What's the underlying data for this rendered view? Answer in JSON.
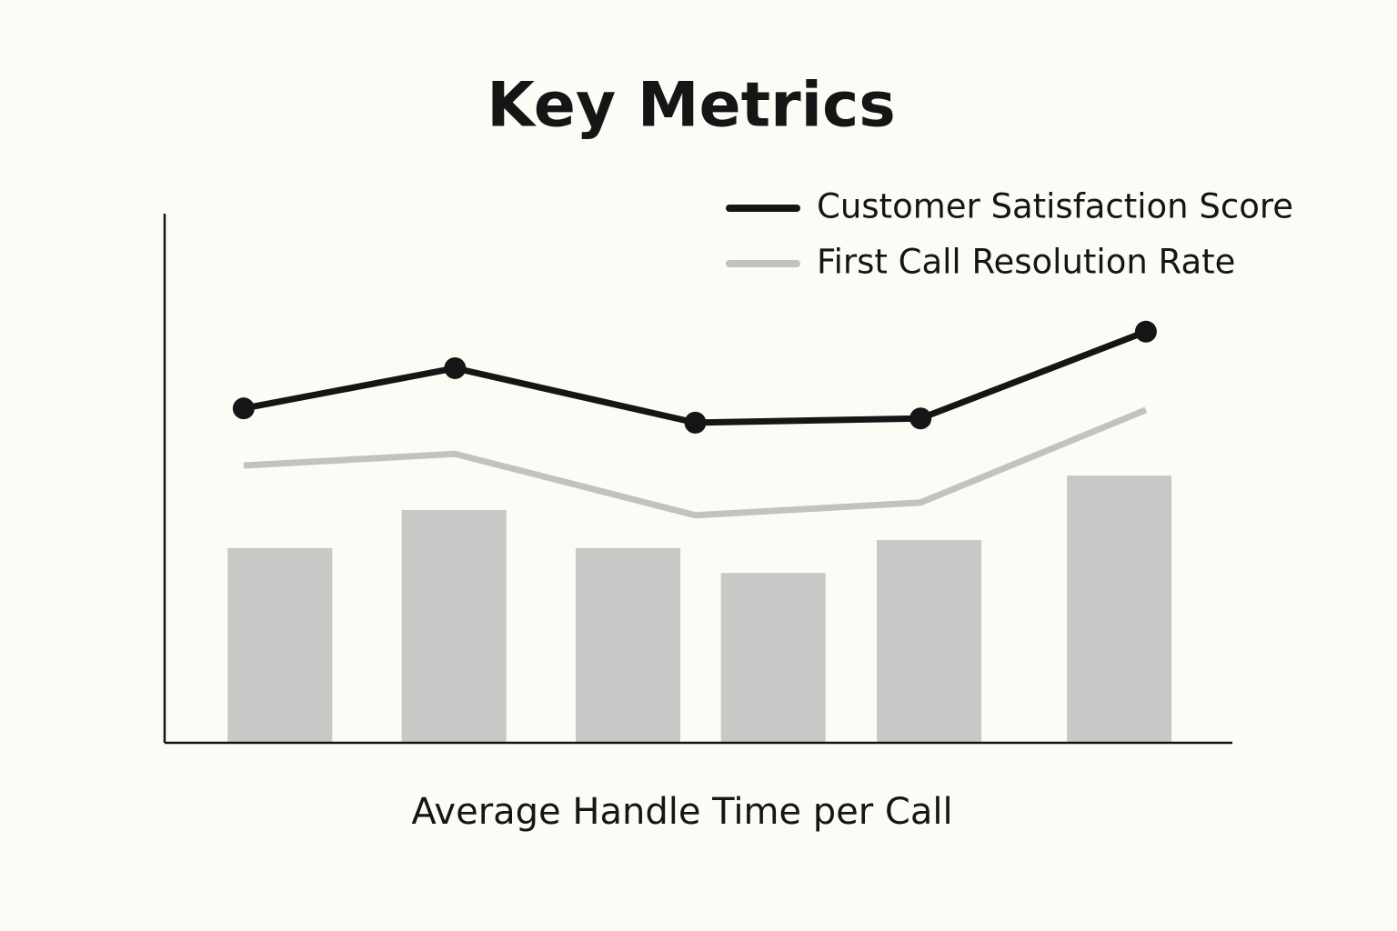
{
  "chart_data": {
    "type": "bar_line",
    "title": "Key Metrics",
    "x_label": "Average Handle Time per Call",
    "xlim": [
      0,
      100
    ],
    "ylim": [
      0,
      100
    ],
    "bars": {
      "color": "#c8c8c6",
      "width": 9.8,
      "x": [
        10.8,
        27.1,
        43.4,
        57.0,
        71.6,
        89.4
      ],
      "values": [
        36.8,
        44.0,
        36.8,
        32.1,
        38.3,
        50.5
      ]
    },
    "series": [
      {
        "name": "Customer Satisfaction Score",
        "color": "#151515",
        "markers": true,
        "x": [
          7.4,
          27.2,
          49.7,
          70.8,
          91.9
        ],
        "values": [
          63.2,
          70.8,
          60.5,
          61.3,
          77.7
        ]
      },
      {
        "name": "First Call Resolution Rate",
        "color": "#c2c2c0",
        "markers": false,
        "x": [
          7.4,
          27.2,
          49.7,
          70.8,
          91.9
        ],
        "values": [
          52.4,
          54.6,
          43.0,
          45.4,
          62.9
        ]
      }
    ]
  }
}
